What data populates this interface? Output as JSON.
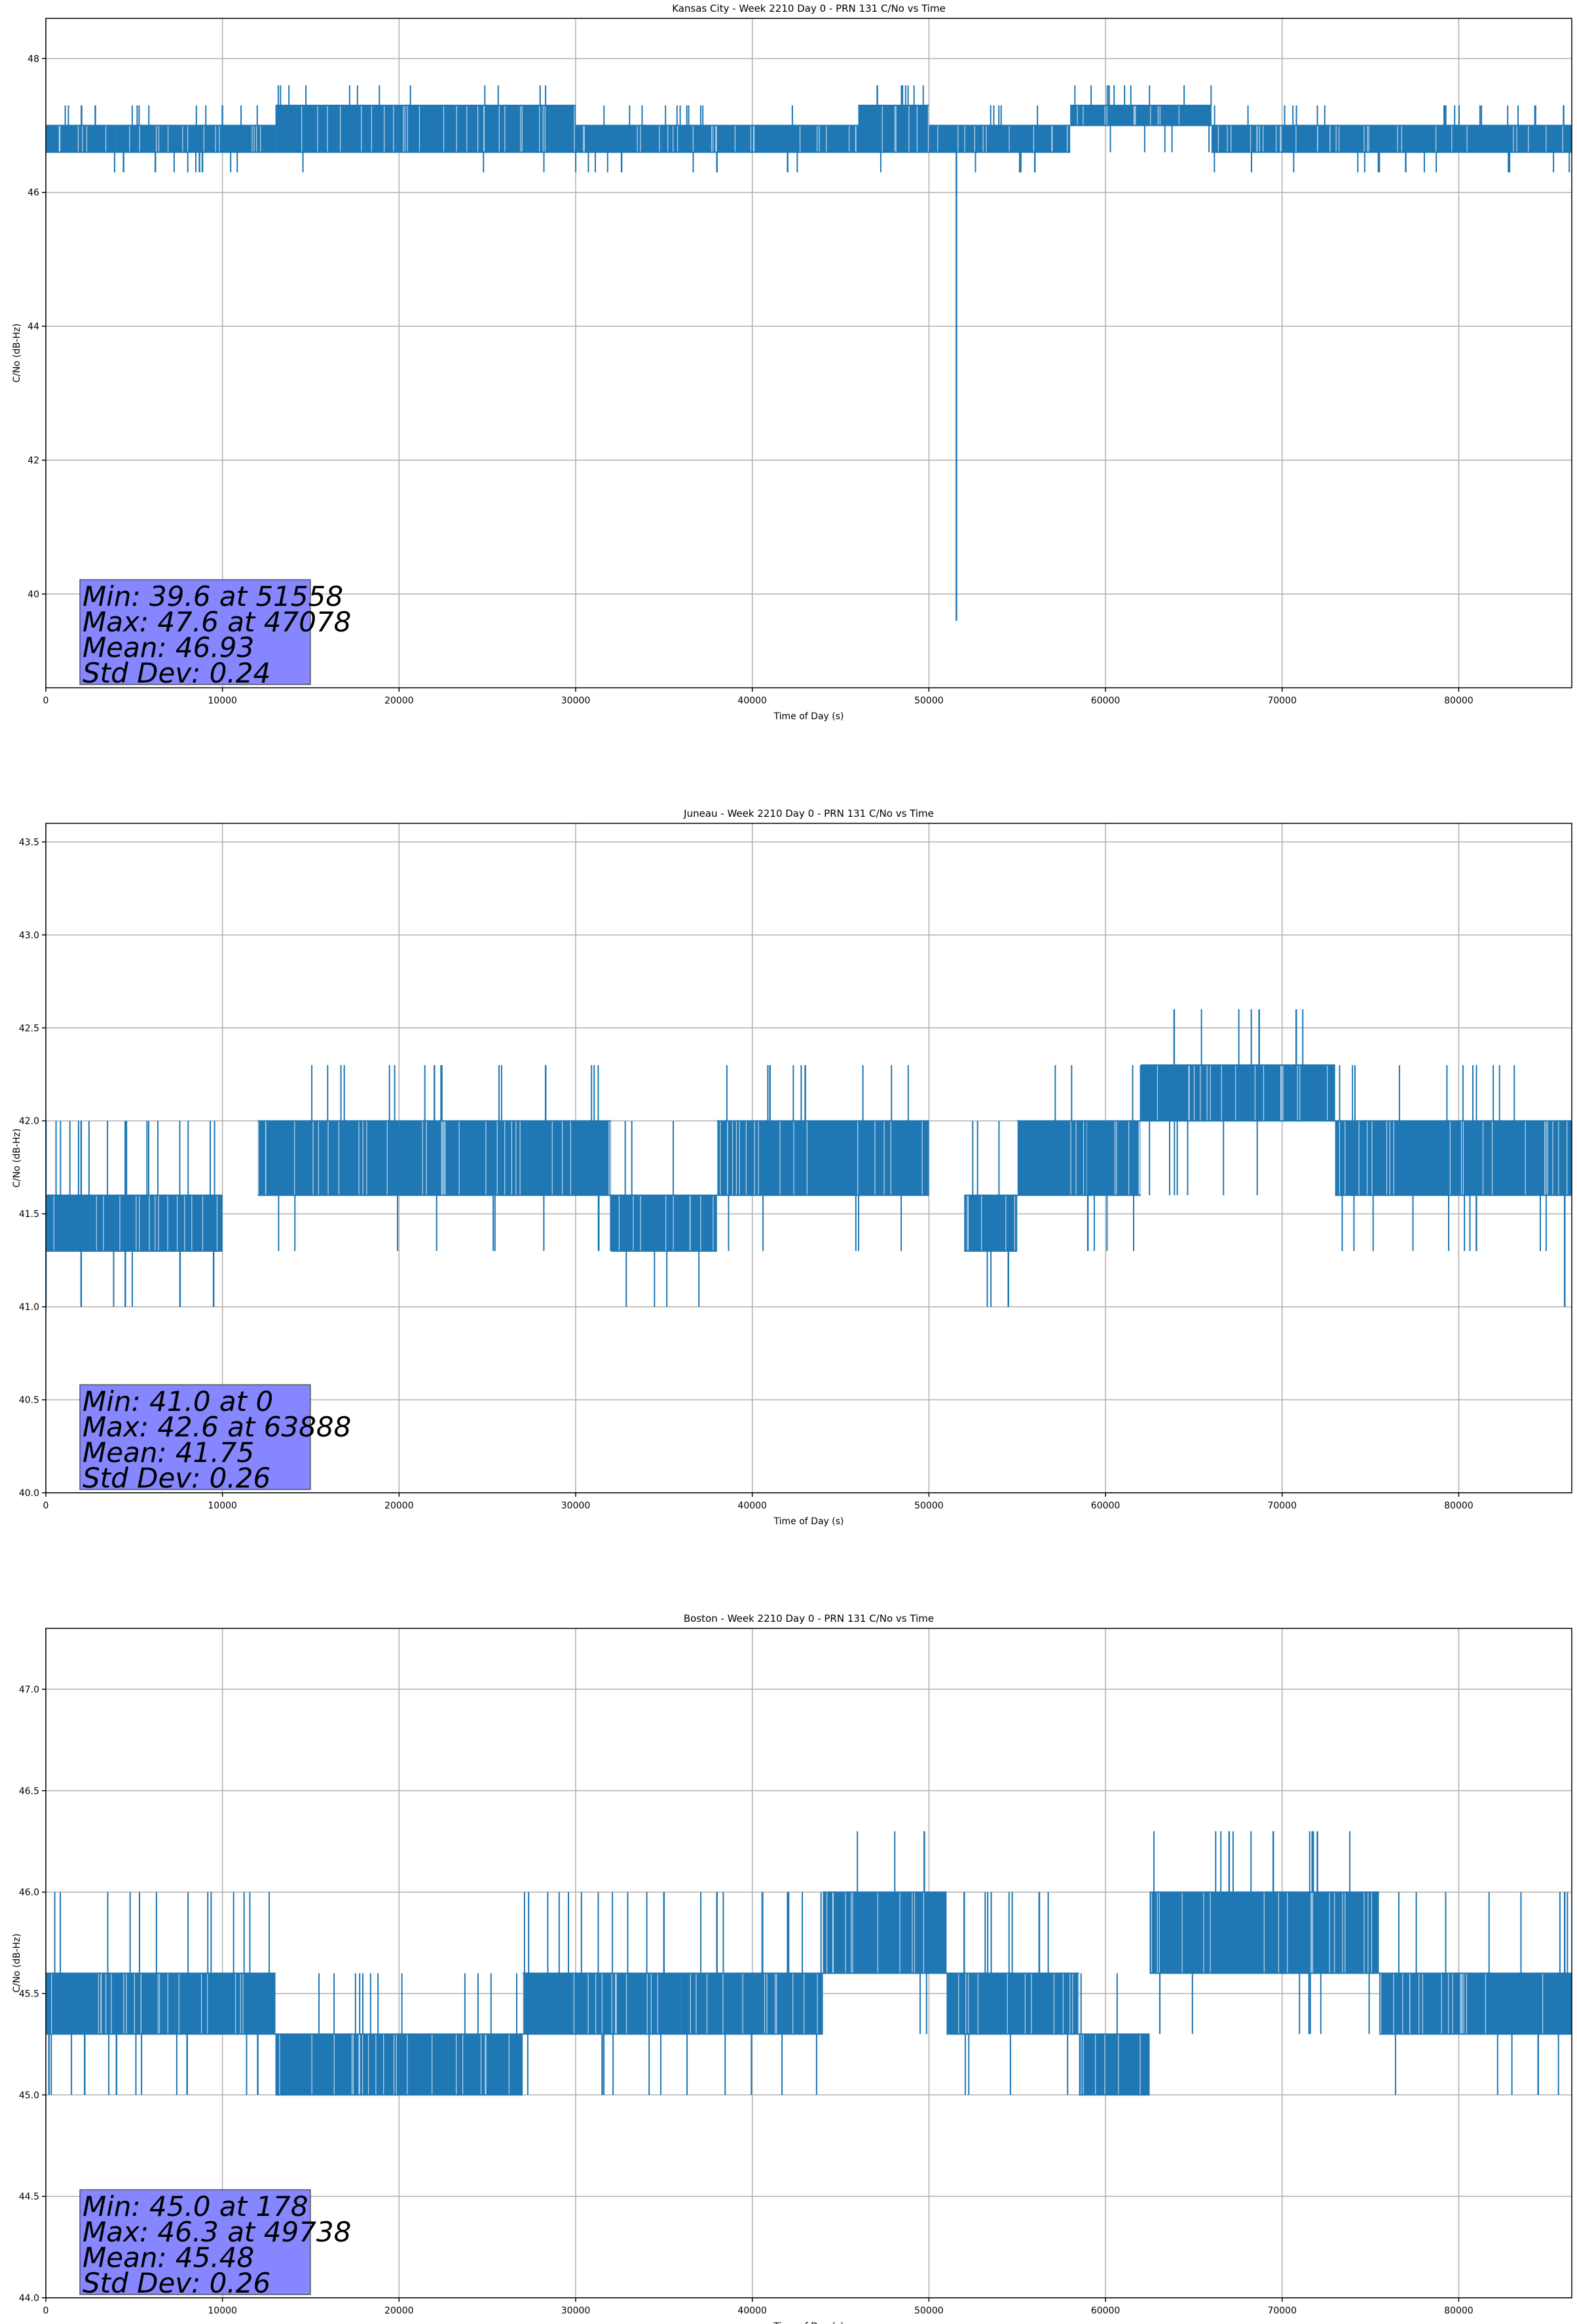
{
  "chart_data": [
    {
      "type": "line",
      "title": "Kansas City - Week 2210 Day 0 - PRN 131 C/No vs Time",
      "xlabel": "Time of Day (s)",
      "ylabel": "C/No (dB-Hz)",
      "xlim": [
        0,
        86400
      ],
      "ylim": [
        38.6,
        48.6
      ],
      "xticks": [
        0,
        10000,
        20000,
        30000,
        40000,
        50000,
        60000,
        70000,
        80000
      ],
      "yticks": [
        40,
        42,
        44,
        46,
        48
      ],
      "ytick_labels": [
        "40",
        "42",
        "44",
        "46",
        "48"
      ],
      "grid": true,
      "series_color": "#1f77b4",
      "series": [
        {
          "name": "C/No",
          "levels": [
            46.3,
            46.6,
            47.0,
            47.3,
            47.6
          ],
          "band_segments": [
            {
              "x": [
                0,
                4000
              ],
              "low": 46.6,
              "high": 47.0
            },
            {
              "x": [
                4000,
                13000
              ],
              "low": 46.6,
              "high": 47.0
            },
            {
              "x": [
                13000,
                30000
              ],
              "low": 46.6,
              "high": 47.3
            },
            {
              "x": [
                30000,
                46000
              ],
              "low": 46.6,
              "high": 47.0
            },
            {
              "x": [
                46000,
                50000
              ],
              "low": 46.6,
              "high": 47.3
            },
            {
              "x": [
                50000,
                58000
              ],
              "low": 46.6,
              "high": 47.0
            },
            {
              "x": [
                58000,
                66000
              ],
              "low": 47.0,
              "high": 47.3
            },
            {
              "x": [
                66000,
                86400
              ],
              "low": 46.6,
              "high": 47.0
            }
          ],
          "spikes": [
            {
              "x": [
                2800,
                2800
              ],
              "y": [
                47.0,
                47.3
              ]
            },
            {
              "x": [
                4400,
                4400
              ],
              "y": [
                46.3,
                46.6
              ]
            },
            {
              "x": [
                6200,
                6200
              ],
              "y": [
                46.3,
                46.6
              ]
            },
            {
              "x": [
                8700,
                8700
              ],
              "y": [
                46.3,
                46.6
              ]
            },
            {
              "x": [
                10000,
                10000
              ],
              "y": [
                47.0,
                47.3
              ]
            },
            {
              "x": [
                32600,
                32600
              ],
              "y": [
                46.3,
                46.6
              ]
            },
            {
              "x": [
                38000,
                38000
              ],
              "y": [
                46.3,
                46.6
              ]
            },
            {
              "x": [
                42000,
                42000
              ],
              "y": [
                46.3,
                46.6
              ]
            },
            {
              "x": [
                47078,
                47078
              ],
              "y": [
                47.3,
                47.6
              ]
            },
            {
              "x": [
                48500,
                48500
              ],
              "y": [
                47.3,
                47.6
              ]
            },
            {
              "x": [
                51558,
                51558
              ],
              "y": [
                39.6,
                47.0
              ]
            },
            {
              "x": [
                56000,
                56000
              ],
              "y": [
                46.3,
                46.6
              ]
            },
            {
              "x": [
                60200,
                60200
              ],
              "y": [
                47.3,
                47.6
              ]
            },
            {
              "x": [
                75500,
                75500
              ],
              "y": [
                46.3,
                46.6
              ]
            },
            {
              "x": [
                77000,
                77000
              ],
              "y": [
                46.3,
                46.6
              ]
            }
          ]
        }
      ],
      "stats_box_color": "#8080ff",
      "stats": [
        "Min: 39.6 at 51558",
        "Max: 47.6 at 47078",
        "Mean: 46.93",
        "Std Dev: 0.24"
      ]
    },
    {
      "type": "line",
      "title": "Juneau - Week 2210 Day 0 - PRN 131 C/No vs Time",
      "xlabel": "Time of Day (s)",
      "ylabel": "C/No (dB-Hz)",
      "xlim": [
        0,
        86400
      ],
      "ylim": [
        40.0,
        43.6
      ],
      "xticks": [
        0,
        10000,
        20000,
        30000,
        40000,
        50000,
        60000,
        70000,
        80000
      ],
      "yticks": [
        40.0,
        40.5,
        41.0,
        41.5,
        42.0,
        42.5,
        43.0,
        43.5
      ],
      "ytick_labels": [
        "40.0",
        "40.5",
        "41.0",
        "41.5",
        "42.0",
        "42.5",
        "43.0",
        "43.5"
      ],
      "grid": true,
      "series_color": "#1f77b4",
      "series": [
        {
          "name": "C/No",
          "levels": [
            41.0,
            41.3,
            41.6,
            42.0,
            42.3,
            42.6
          ],
          "band_segments": [
            {
              "x": [
                0,
                10000
              ],
              "low": 41.3,
              "high": 41.6
            },
            {
              "x": [
                12000,
                20000
              ],
              "low": 41.6,
              "high": 42.0
            },
            {
              "x": [
                20000,
                32000
              ],
              "low": 41.6,
              "high": 42.0
            },
            {
              "x": [
                32000,
                38000
              ],
              "low": 41.3,
              "high": 41.6
            },
            {
              "x": [
                38000,
                50000
              ],
              "low": 41.6,
              "high": 42.0
            },
            {
              "x": [
                52000,
                55000
              ],
              "low": 41.3,
              "high": 41.6
            },
            {
              "x": [
                55000,
                62000
              ],
              "low": 41.6,
              "high": 42.0
            },
            {
              "x": [
                62000,
                73000
              ],
              "low": 42.0,
              "high": 42.3
            },
            {
              "x": [
                73000,
                86400
              ],
              "low": 41.6,
              "high": 42.0
            }
          ],
          "spikes": [
            {
              "x": [
                0,
                0
              ],
              "y": [
                41.0,
                42.0
              ]
            },
            {
              "x": [
                2000,
                2000
              ],
              "y": [
                41.0,
                42.0
              ]
            },
            {
              "x": [
                4500,
                4500
              ],
              "y": [
                41.0,
                42.0
              ]
            },
            {
              "x": [
                7600,
                7600
              ],
              "y": [
                41.0,
                41.6
              ]
            },
            {
              "x": [
                9500,
                9500
              ],
              "y": [
                41.0,
                41.6
              ]
            },
            {
              "x": [
                22000,
                22000
              ],
              "y": [
                42.0,
                42.3
              ]
            },
            {
              "x": [
                28300,
                28300
              ],
              "y": [
                42.0,
                42.3
              ]
            },
            {
              "x": [
                41000,
                41000
              ],
              "y": [
                42.0,
                42.3
              ]
            },
            {
              "x": [
                43000,
                43000
              ],
              "y": [
                42.0,
                42.3
              ]
            },
            {
              "x": [
                54500,
                54500
              ],
              "y": [
                41.0,
                41.6
              ]
            },
            {
              "x": [
                59000,
                59000
              ],
              "y": [
                41.3,
                42.0
              ]
            },
            {
              "x": [
                63888,
                63888
              ],
              "y": [
                42.3,
                42.6
              ]
            },
            {
              "x": [
                68700,
                68700
              ],
              "y": [
                42.3,
                42.6
              ]
            },
            {
              "x": [
                70800,
                70800
              ],
              "y": [
                42.3,
                42.6
              ]
            },
            {
              "x": [
                81000,
                81000
              ],
              "y": [
                41.3,
                41.6
              ]
            },
            {
              "x": [
                86000,
                86000
              ],
              "y": [
                41.0,
                41.6
              ]
            }
          ]
        }
      ],
      "stats_box_color": "#8080ff",
      "stats": [
        "Min: 41.0 at 0",
        "Max: 42.6 at 63888",
        "Mean: 41.75",
        "Std Dev: 0.26"
      ]
    },
    {
      "type": "line",
      "title": "Boston - Week 2210 Day 0 - PRN 131 C/No vs Time",
      "xlabel": "Time of Day (s)",
      "ylabel": "C/No (dB-Hz)",
      "xlim": [
        0,
        86400
      ],
      "ylim": [
        44.0,
        47.3
      ],
      "xticks": [
        0,
        10000,
        20000,
        30000,
        40000,
        50000,
        60000,
        70000,
        80000
      ],
      "yticks": [
        44.0,
        44.5,
        45.0,
        45.5,
        46.0,
        46.5,
        47.0
      ],
      "ytick_labels": [
        "44.0",
        "44.5",
        "45.0",
        "45.5",
        "46.0",
        "46.5",
        "47.0"
      ],
      "grid": true,
      "series_color": "#1f77b4",
      "series": [
        {
          "name": "C/No",
          "levels": [
            45.0,
            45.3,
            45.6,
            46.0,
            46.3
          ],
          "band_segments": [
            {
              "x": [
                0,
                5000
              ],
              "low": 45.3,
              "high": 45.6
            },
            {
              "x": [
                5000,
                13000
              ],
              "low": 45.3,
              "high": 45.6
            },
            {
              "x": [
                13000,
                27000
              ],
              "low": 45.0,
              "high": 45.3
            },
            {
              "x": [
                27000,
                36000
              ],
              "low": 45.3,
              "high": 45.6
            },
            {
              "x": [
                36000,
                44000
              ],
              "low": 45.3,
              "high": 45.6
            },
            {
              "x": [
                44000,
                51000
              ],
              "low": 45.6,
              "high": 46.0
            },
            {
              "x": [
                51000,
                58500
              ],
              "low": 45.3,
              "high": 45.6
            },
            {
              "x": [
                58500,
                62500
              ],
              "low": 45.0,
              "high": 45.3
            },
            {
              "x": [
                62500,
                75500
              ],
              "low": 45.6,
              "high": 46.0
            },
            {
              "x": [
                75500,
                86400
              ],
              "low": 45.3,
              "high": 45.6
            }
          ],
          "spikes": [
            {
              "x": [
                178,
                178
              ],
              "y": [
                45.0,
                45.6
              ]
            },
            {
              "x": [
                2200,
                2200
              ],
              "y": [
                45.0,
                45.6
              ]
            },
            {
              "x": [
                4000,
                4000
              ],
              "y": [
                45.0,
                45.3
              ]
            },
            {
              "x": [
                8000,
                8000
              ],
              "y": [
                45.0,
                45.6
              ]
            },
            {
              "x": [
                12000,
                12000
              ],
              "y": [
                45.0,
                45.6
              ]
            },
            {
              "x": [
                31500,
                31500
              ],
              "y": [
                45.0,
                45.3
              ]
            },
            {
              "x": [
                35000,
                35000
              ],
              "y": [
                45.6,
                46.0
              ]
            },
            {
              "x": [
                38000,
                38000
              ],
              "y": [
                45.6,
                46.0
              ]
            },
            {
              "x": [
                42000,
                42000
              ],
              "y": [
                45.6,
                46.0
              ]
            },
            {
              "x": [
                49738,
                49738
              ],
              "y": [
                46.0,
                46.3
              ]
            },
            {
              "x": [
                52000,
                52000
              ],
              "y": [
                45.6,
                46.0
              ]
            },
            {
              "x": [
                67000,
                67000
              ],
              "y": [
                46.0,
                46.3
              ]
            },
            {
              "x": [
                69500,
                69500
              ],
              "y": [
                46.0,
                46.3
              ]
            },
            {
              "x": [
                72000,
                72000
              ],
              "y": [
                46.0,
                46.3
              ]
            },
            {
              "x": [
                84500,
                84500
              ],
              "y": [
                45.0,
                45.3
              ]
            },
            {
              "x": [
                86000,
                86000
              ],
              "y": [
                45.3,
                46.0
              ]
            }
          ]
        }
      ],
      "stats_box_color": "#8080ff",
      "stats": [
        "Min: 45.0 at 178",
        "Max: 46.3 at 49738",
        "Mean: 45.48",
        "Std Dev: 0.26"
      ]
    }
  ]
}
